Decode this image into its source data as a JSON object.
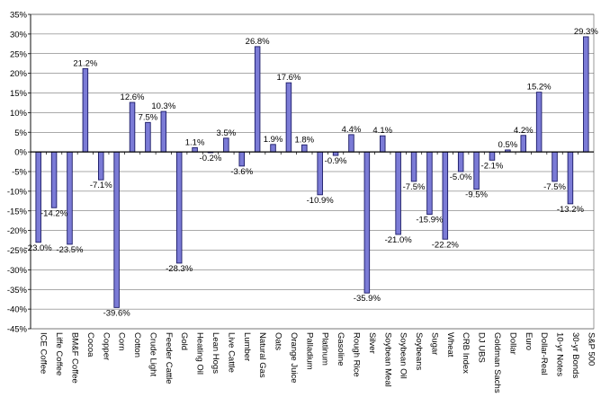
{
  "chart_data": {
    "type": "bar",
    "categories": [
      "ICE Coffee",
      "Liffe Coffee",
      "BM&F Coffee",
      "Cocoa",
      "Copper",
      "Corn",
      "Cotton",
      "Crude Light",
      "Feeder Cattle",
      "Gold",
      "Heating Oil",
      "Lean Hogs",
      "Live Cattle",
      "Lumber",
      "Natural Gas",
      "Oats",
      "Orange Juice",
      "Palladium",
      "Platinum",
      "Gasoline",
      "Rough Rice",
      "Silver",
      "Soybean Meal",
      "Soybean Oil",
      "Soybeans",
      "Sugar",
      "Wheat",
      "CRB Index",
      "DJ UBS",
      "Goldman Sachs",
      "Dollar",
      "Euro",
      "Dollar-Real",
      "10-yr Notes",
      "30-yr Bonds",
      "S&P 500"
    ],
    "values": [
      -23.0,
      -14.2,
      -23.5,
      21.2,
      -7.1,
      -39.6,
      12.6,
      7.5,
      10.3,
      -28.3,
      1.1,
      -0.2,
      3.5,
      -3.6,
      26.8,
      1.9,
      17.6,
      1.8,
      -10.9,
      -0.9,
      4.4,
      -35.9,
      4.1,
      -21.0,
      -7.5,
      -15.9,
      -22.2,
      -5.0,
      -9.5,
      -2.1,
      0.5,
      4.2,
      15.2,
      -7.5,
      -13.2,
      29.3
    ],
    "data_labels": [
      "-23.0%",
      "-14.2%",
      "-23.5%",
      "21.2%",
      "-7.1%",
      "-39.6%",
      "12.6%",
      "7.5%",
      "10.3%",
      "-28.3%",
      "1.1%",
      "-0.2%",
      "3.5%",
      "-3.6%",
      "26.8%",
      "1.9%",
      "17.6%",
      "1.8%",
      "-10.9%",
      "-0.9%",
      "4.4%",
      "-35.9%",
      "4.1%",
      "-21.0%",
      "-7.5%",
      "-15.9%",
      "-22.2%",
      "-5.0%",
      "-9.5%",
      "-2.1%",
      "0.5%",
      "4.2%",
      "15.2%",
      "-7.5%",
      "-13.2%",
      "29.3%"
    ],
    "yticks": [
      35,
      30,
      25,
      20,
      15,
      10,
      5,
      0,
      -5,
      -10,
      -15,
      -20,
      -25,
      -30,
      -35,
      -40,
      -45
    ],
    "ytick_labels": [
      "35%",
      "30%",
      "25%",
      "20%",
      "15%",
      "10%",
      "5%",
      "0%",
      "-5%",
      "-10%",
      "-15%",
      "-20%",
      "-25%",
      "-30%",
      "-35%",
      "-40%",
      "-45%"
    ],
    "ylim": [
      -45,
      35
    ],
    "title": "",
    "xlabel": "",
    "ylabel": "",
    "grid": true,
    "legend": false,
    "colors": {
      "bar_fill": "#7b7bd6",
      "bar_stroke": "#1a1a66",
      "grid": "#555555",
      "axis": "#000000",
      "background": "#ffffff"
    }
  }
}
